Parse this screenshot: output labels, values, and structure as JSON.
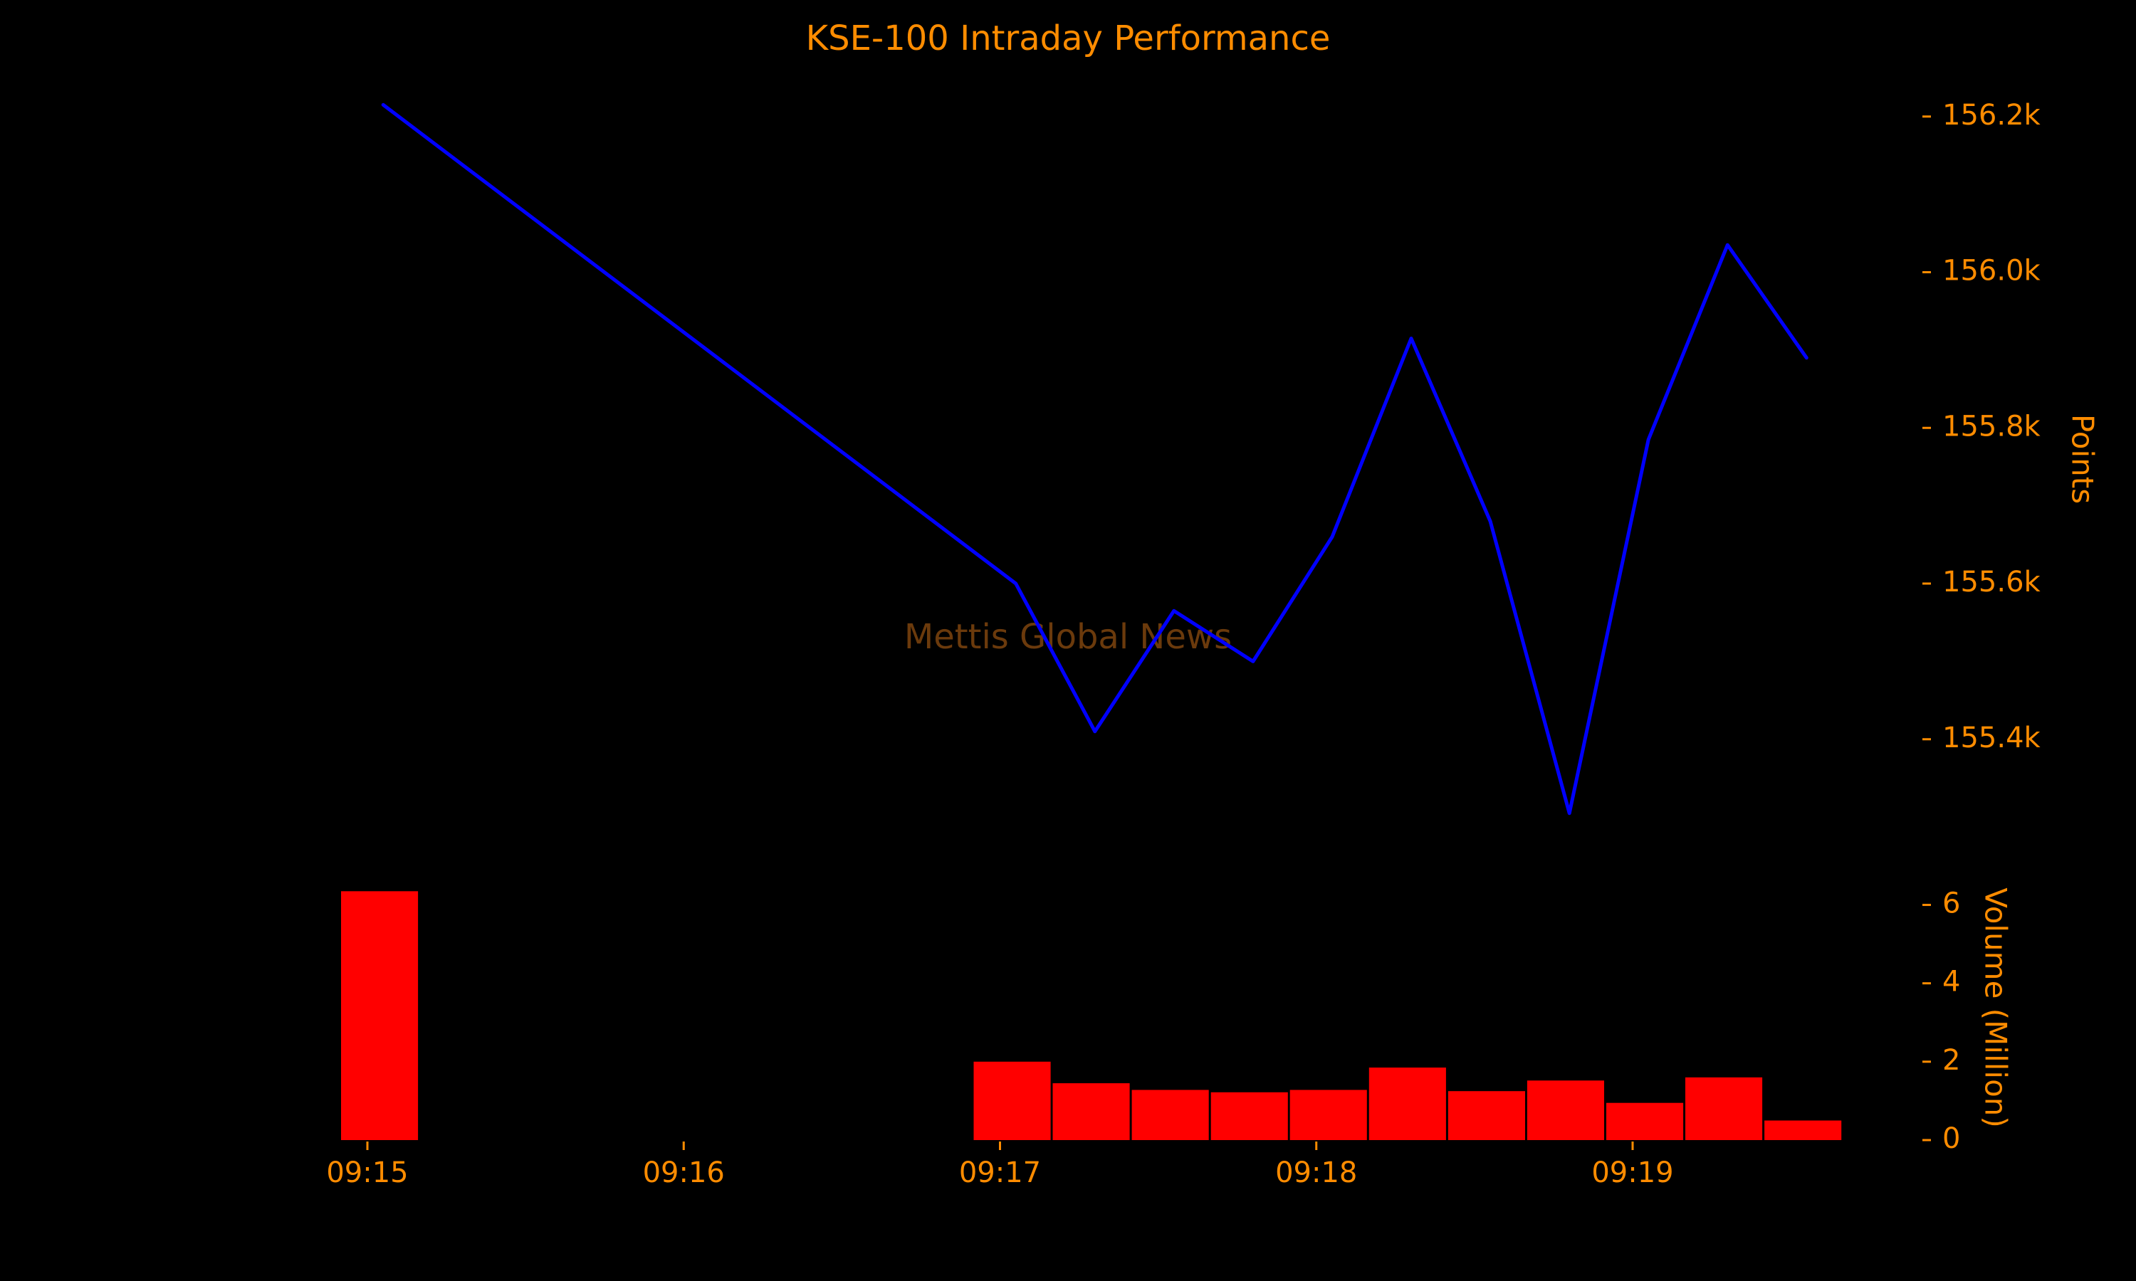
{
  "colors": {
    "background": "#000000",
    "text": "#ff8c00",
    "watermark": "#6b3a0c",
    "price_line": "#0000ff",
    "volume_bar": "#ff0000"
  },
  "watermark": "Mettis Global News",
  "chart_data": [
    {
      "type": "line",
      "title": "KSE-100 Intraday Performance",
      "ylabel": "Points",
      "xlabel": "",
      "ylim": [
        155280,
        156240
      ],
      "x": [
        "09:15:03",
        "09:17:03",
        "09:17:18",
        "09:17:33",
        "09:17:48",
        "09:18:03",
        "09:18:18",
        "09:18:33",
        "09:18:48",
        "09:19:03",
        "09:19:18",
        "09:19:33"
      ],
      "y_ticks": [
        155400,
        155600,
        155800,
        156000,
        156200
      ],
      "y_tick_labels": [
        "155.4k",
        "155.6k",
        "155.8k",
        "156.0k",
        "156.2k"
      ],
      "series": [
        {
          "values": [
            156215,
            155600,
            155410,
            155565,
            155500,
            155660,
            155915,
            155680,
            155305,
            155785,
            156035,
            155890
          ]
        }
      ]
    },
    {
      "type": "bar",
      "ylabel": "Volume (Million)",
      "xlabel": "",
      "ylim": [
        0,
        6.5
      ],
      "y_ticks": [
        0,
        2,
        4,
        6
      ],
      "y_tick_labels": [
        "0",
        "2",
        "4",
        "6"
      ],
      "x_ticks": [
        "09:15",
        "09:16",
        "09:17",
        "09:18",
        "09:19"
      ],
      "bars": [
        {
          "start": "09:14:55",
          "end": "09:15:10",
          "value": 6.35
        },
        {
          "start": "09:16:55",
          "end": "09:17:10",
          "value": 2.0
        },
        {
          "start": "09:17:10",
          "end": "09:17:25",
          "value": 1.45
        },
        {
          "start": "09:17:25",
          "end": "09:17:40",
          "value": 1.28
        },
        {
          "start": "09:17:40",
          "end": "09:17:55",
          "value": 1.22
        },
        {
          "start": "09:17:55",
          "end": "09:18:10",
          "value": 1.28
        },
        {
          "start": "09:18:10",
          "end": "09:18:25",
          "value": 1.85
        },
        {
          "start": "09:18:25",
          "end": "09:18:40",
          "value": 1.25
        },
        {
          "start": "09:18:40",
          "end": "09:18:55",
          "value": 1.52
        },
        {
          "start": "09:18:55",
          "end": "09:19:10",
          "value": 0.95
        },
        {
          "start": "09:19:10",
          "end": "09:19:25",
          "value": 1.6
        },
        {
          "start": "09:19:25",
          "end": "09:19:40",
          "value": 0.5
        }
      ]
    }
  ]
}
